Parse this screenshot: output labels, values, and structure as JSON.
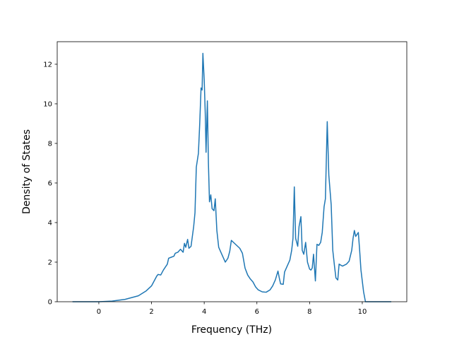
{
  "chart_data": {
    "type": "line",
    "xlabel": "Frequency (THz)",
    "ylabel": "Density of States",
    "xlim": [
      -1.58,
      11.69
    ],
    "ylim": [
      0,
      13.14
    ],
    "xticks": [
      0,
      2,
      4,
      6,
      8,
      10
    ],
    "yticks": [
      0,
      2,
      4,
      6,
      8,
      10,
      12
    ],
    "grid": false,
    "series": [
      {
        "color": "#1f77b4",
        "x": [
          -1,
          0,
          0.5,
          1.0,
          1.5,
          1.8,
          2.0,
          2.1,
          2.2,
          2.25,
          2.35,
          2.45,
          2.6,
          2.65,
          2.75,
          2.85,
          2.9,
          3.0,
          3.1,
          3.2,
          3.25,
          3.3,
          3.37,
          3.42,
          3.5,
          3.6,
          3.65,
          3.7,
          3.78,
          3.83,
          3.88,
          3.92,
          3.95,
          4.0,
          4.04,
          4.07,
          4.12,
          4.16,
          4.2,
          4.25,
          4.3,
          4.37,
          4.42,
          4.48,
          4.55,
          4.65,
          4.8,
          4.9,
          4.97,
          5.03,
          5.15,
          5.35,
          5.45,
          5.55,
          5.65,
          5.75,
          5.85,
          5.95,
          6.05,
          6.2,
          6.35,
          6.5,
          6.6,
          6.7,
          6.8,
          6.85,
          6.9,
          7.0,
          7.05,
          7.15,
          7.25,
          7.32,
          7.37,
          7.42,
          7.47,
          7.55,
          7.6,
          7.67,
          7.72,
          7.78,
          7.85,
          7.92,
          8.0,
          8.05,
          8.1,
          8.15,
          8.22,
          8.28,
          8.35,
          8.42,
          8.48,
          8.55,
          8.6,
          8.67,
          8.73,
          8.82,
          8.88,
          8.95,
          9.0,
          9.07,
          9.12,
          9.25,
          9.4,
          9.5,
          9.6,
          9.65,
          9.7,
          9.75,
          9.85,
          9.9,
          9.95,
          10.05,
          10.12,
          11.1
        ],
        "values": [
          0,
          0,
          0.03,
          0.12,
          0.3,
          0.55,
          0.8,
          1.05,
          1.3,
          1.38,
          1.35,
          1.6,
          1.9,
          2.2,
          2.25,
          2.3,
          2.45,
          2.5,
          2.65,
          2.5,
          2.95,
          2.75,
          3.15,
          2.7,
          2.8,
          3.8,
          4.5,
          6.8,
          7.5,
          9.0,
          10.8,
          10.7,
          12.55,
          11.2,
          9.5,
          7.55,
          10.15,
          7.0,
          5.05,
          5.4,
          4.7,
          4.6,
          5.2,
          3.6,
          2.75,
          2.45,
          2.0,
          2.2,
          2.55,
          3.1,
          2.95,
          2.7,
          2.45,
          1.7,
          1.35,
          1.15,
          1.0,
          0.75,
          0.6,
          0.5,
          0.48,
          0.6,
          0.8,
          1.1,
          1.55,
          1.2,
          0.9,
          0.88,
          1.5,
          1.8,
          2.1,
          2.6,
          3.2,
          5.8,
          3.2,
          2.8,
          3.8,
          4.3,
          2.6,
          2.4,
          3.0,
          2.0,
          1.65,
          1.6,
          1.7,
          2.4,
          1.05,
          2.9,
          2.85,
          3.0,
          3.5,
          4.8,
          5.2,
          9.1,
          6.4,
          4.9,
          2.6,
          1.75,
          1.2,
          1.1,
          1.9,
          1.8,
          1.9,
          2.05,
          2.6,
          3.2,
          3.6,
          3.3,
          3.5,
          2.6,
          1.6,
          0.5,
          0,
          0
        ]
      }
    ]
  }
}
